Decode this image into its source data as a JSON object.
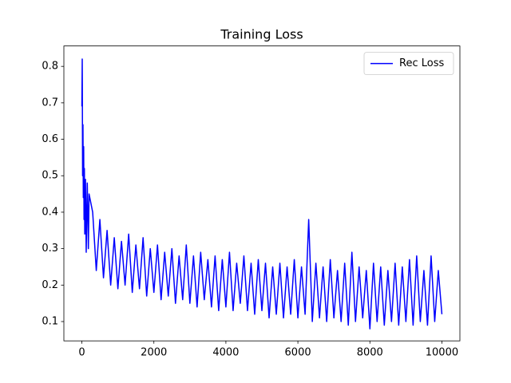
{
  "chart_data": {
    "type": "line",
    "title": "Training Loss",
    "x": [
      0,
      10,
      20,
      30,
      40,
      50,
      60,
      70,
      80,
      100,
      120,
      150,
      180,
      200,
      300,
      400,
      500,
      600,
      700,
      800,
      900,
      1000,
      1100,
      1200,
      1300,
      1400,
      1500,
      1600,
      1700,
      1800,
      1900,
      2000,
      2100,
      2200,
      2300,
      2400,
      2500,
      2600,
      2700,
      2800,
      2900,
      3000,
      3100,
      3200,
      3300,
      3400,
      3500,
      3600,
      3700,
      3800,
      3900,
      4000,
      4100,
      4200,
      4300,
      4400,
      4500,
      4600,
      4700,
      4800,
      4900,
      5000,
      5100,
      5200,
      5300,
      5400,
      5500,
      5600,
      5700,
      5800,
      5900,
      6000,
      6100,
      6200,
      6300,
      6400,
      6500,
      6600,
      6700,
      6800,
      6900,
      7000,
      7100,
      7200,
      7300,
      7400,
      7500,
      7600,
      7700,
      7800,
      7900,
      8000,
      8100,
      8200,
      8300,
      8400,
      8500,
      8600,
      8700,
      8800,
      8900,
      9000,
      9100,
      9200,
      9300,
      9400,
      9500,
      9600,
      9700,
      9800,
      9900,
      10000
    ],
    "series": [
      {
        "name": "Rec Loss",
        "color": "#0000ff",
        "values": [
          0.69,
          0.82,
          0.5,
          0.64,
          0.44,
          0.58,
          0.38,
          0.52,
          0.34,
          0.49,
          0.29,
          0.48,
          0.3,
          0.45,
          0.4,
          0.24,
          0.38,
          0.22,
          0.35,
          0.2,
          0.33,
          0.19,
          0.32,
          0.2,
          0.34,
          0.18,
          0.31,
          0.19,
          0.33,
          0.17,
          0.3,
          0.18,
          0.31,
          0.16,
          0.29,
          0.17,
          0.3,
          0.15,
          0.28,
          0.16,
          0.31,
          0.15,
          0.28,
          0.14,
          0.29,
          0.16,
          0.27,
          0.14,
          0.28,
          0.13,
          0.27,
          0.14,
          0.29,
          0.13,
          0.26,
          0.15,
          0.28,
          0.13,
          0.26,
          0.12,
          0.27,
          0.13,
          0.26,
          0.11,
          0.25,
          0.12,
          0.26,
          0.11,
          0.25,
          0.12,
          0.27,
          0.11,
          0.25,
          0.12,
          0.38,
          0.1,
          0.26,
          0.11,
          0.25,
          0.1,
          0.27,
          0.11,
          0.24,
          0.1,
          0.26,
          0.09,
          0.29,
          0.1,
          0.25,
          0.11,
          0.24,
          0.08,
          0.26,
          0.1,
          0.25,
          0.09,
          0.24,
          0.1,
          0.26,
          0.09,
          0.25,
          0.1,
          0.27,
          0.09,
          0.28,
          0.1,
          0.24,
          0.09,
          0.28,
          0.1,
          0.24,
          0.12
        ]
      }
    ],
    "xlim": [
      -500,
      10500
    ],
    "ylim": [
      0.047,
      0.856
    ],
    "xticks": [
      0,
      2000,
      4000,
      6000,
      8000,
      10000
    ],
    "yticks": [
      0.1,
      0.2,
      0.3,
      0.4,
      0.5,
      0.6,
      0.7,
      0.8
    ],
    "legend": "upper right"
  }
}
